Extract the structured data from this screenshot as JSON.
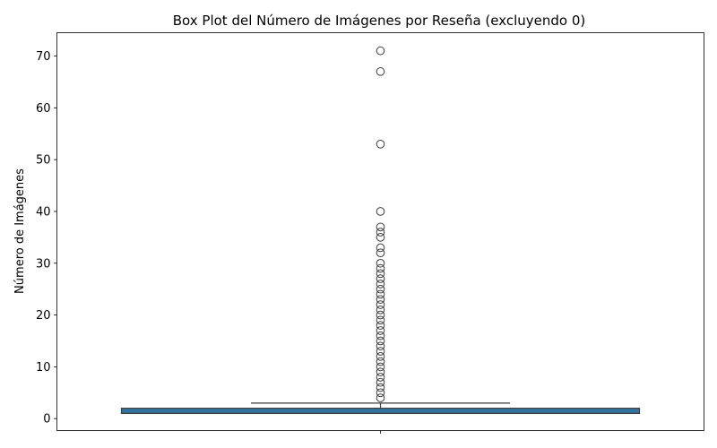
{
  "chart_data": {
    "type": "box",
    "title": "Box Plot del Número de Imágenes por Reseña (excluyendo 0)",
    "xlabel": "",
    "ylabel": "Número de Imágenes",
    "ylim": [
      -2.3,
      74.5
    ],
    "yticks": [
      0,
      10,
      20,
      30,
      40,
      50,
      60,
      70
    ],
    "grid": false,
    "box": {
      "whisker_low": 1,
      "q1": 1,
      "median": 1,
      "q3": 2,
      "whisker_high": 3,
      "fill_color": "#3274a1",
      "edge_color": "#3d3d3d"
    },
    "outliers": [
      4,
      5,
      6,
      7,
      8,
      9,
      10,
      11,
      12,
      13,
      14,
      15,
      16,
      17,
      18,
      19,
      20,
      21,
      22,
      23,
      24,
      25,
      26,
      27,
      28,
      29,
      30,
      32,
      33,
      35,
      36,
      37,
      40,
      53,
      67,
      71
    ]
  }
}
